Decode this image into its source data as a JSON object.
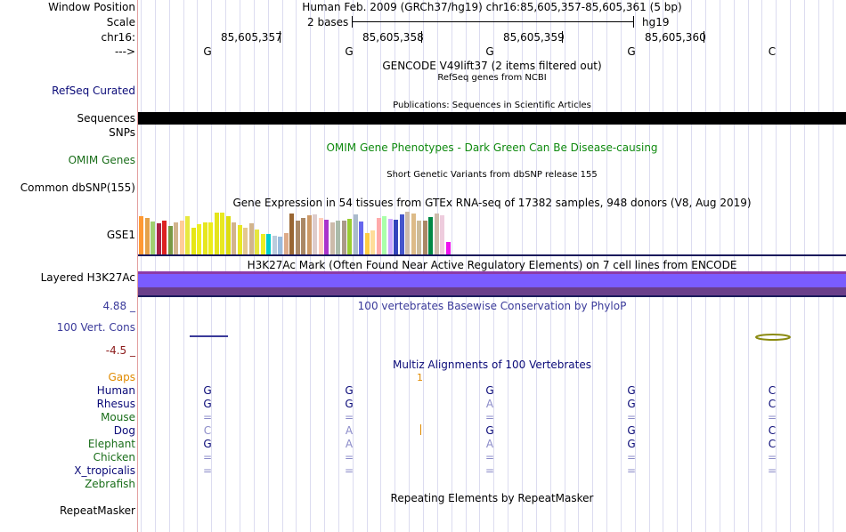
{
  "colors": {
    "navy": "#0a0a78",
    "green": "#1a6e1a",
    "omim_green": "#0f8a0f",
    "dark_red": "#8b1a1a",
    "gap_orange": "#e08a00",
    "phylop_blue": "#3a3a9a",
    "h3k27ac_purple": "#7a5cff",
    "h3k27ac_dark": "#6a3f8a",
    "grid_line": "#dcdcf0",
    "sequence_black": "#000000",
    "track_rule": "#1a1a5c"
  },
  "labels": {
    "window_position": "Window Position",
    "scale": "Scale",
    "chrom": "chr16:",
    "strand": "--->",
    "refseq": "RefSeq Curated",
    "sequences": "Sequences",
    "snps": "SNPs",
    "omim": "OMIM Genes",
    "dbsnp": "Common dbSNP(155)",
    "gse1": "GSE1",
    "h3k27ac": "Layered H3K27Ac",
    "phylop_top": "4.88 _",
    "phylop": "100 Vert. Cons",
    "phylop_bottom": "-4.5 _",
    "gaps": "Gaps",
    "species": [
      {
        "name": "Human",
        "color": "#0a0a78"
      },
      {
        "name": "Rhesus",
        "color": "#0a0a78"
      },
      {
        "name": "Mouse",
        "color": "#1a6e1a"
      },
      {
        "name": "Dog",
        "color": "#0a0a78"
      },
      {
        "name": "Elephant",
        "color": "#1a6e1a"
      },
      {
        "name": "Chicken",
        "color": "#1a6e1a"
      },
      {
        "name": "X_tropicalis",
        "color": "#0a0a78"
      },
      {
        "name": "Zebrafish",
        "color": "#1a6e1a"
      }
    ],
    "repeatmasker": "RepeatMasker"
  },
  "header": {
    "window": "Human Feb. 2009 (GRCh37/hg19)     chr16:85,605,357-85,605,361 (5 bp)",
    "scale_bases": "2 bases",
    "assembly": "hg19",
    "positions": [
      "85,605,357",
      "85,605,358",
      "85,605,359",
      "85,605,360"
    ]
  },
  "sequence": [
    "G",
    "G",
    "G",
    "G",
    "C"
  ],
  "tracks": {
    "gencode": "GENCODE V49lift37 (2 items filtered out)",
    "refseq_desc": "RefSeq genes from NCBI",
    "publications": "Publications: Sequences in Scientific Articles",
    "omim_desc": "OMIM Gene Phenotypes - Dark Green Can Be Disease-causing",
    "dbsnp_desc": "Short Genetic Variants from dbSNP release 155",
    "gtex_desc": "Gene Expression in 54 tissues from GTEx RNA-seq of 17382 samples, 948 donors (V8, Aug 2019)",
    "h3k27ac_desc": "H3K27Ac Mark (Often Found Near Active Regulatory Elements) on 7 cell lines from ENCODE",
    "phylop_desc": "100 vertebrates Basewise Conservation by PhyloP",
    "multiz_desc": "Multiz Alignments of 100 Vertebrates",
    "gap_count": "1",
    "repeat_desc": "Repeating Elements by RepeatMasker"
  },
  "alignment": [
    [
      "G",
      "G",
      "G",
      "G",
      "C"
    ],
    [
      "G",
      "G",
      "A",
      "G",
      "C"
    ],
    [
      "=",
      "=",
      "=",
      "=",
      "="
    ],
    [
      "C",
      "A",
      "G",
      "G",
      "C"
    ],
    [
      "G",
      "A",
      "A",
      "G",
      "C"
    ],
    [
      "=",
      "=",
      "=",
      "=",
      "="
    ],
    [
      "=",
      "=",
      "=",
      "=",
      "="
    ],
    [
      "",
      "",
      "",
      "",
      ""
    ]
  ],
  "alignment_colors": [
    [
      "#0a0a78",
      "#0a0a78",
      "#0a0a78",
      "#0a0a78",
      "#0a0a78"
    ],
    [
      "#0a0a78",
      "#0a0a78",
      "#8a8ac8",
      "#0a0a78",
      "#0a0a78"
    ],
    [
      "#8a8ac8",
      "#8a8ac8",
      "#8a8ac8",
      "#8a8ac8",
      "#8a8ac8"
    ],
    [
      "#8a8ac8",
      "#8a8ac8",
      "#0a0a78",
      "#0a0a78",
      "#0a0a78"
    ],
    [
      "#0a0a78",
      "#8a8ac8",
      "#8a8ac8",
      "#0a0a78",
      "#0a0a78"
    ],
    [
      "#8a8ac8",
      "#8a8ac8",
      "#8a8ac8",
      "#8a8ac8",
      "#8a8ac8"
    ],
    [
      "#8a8ac8",
      "#8a8ac8",
      "#8a8ac8",
      "#8a8ac8",
      "#8a8ac8"
    ],
    [
      "#0a0a78",
      "#0a0a78",
      "#0a0a78",
      "#0a0a78",
      "#0a0a78"
    ]
  ],
  "gtex": {
    "values": [
      0.9,
      0.86,
      0.78,
      0.72,
      0.8,
      0.66,
      0.74,
      0.8,
      0.9,
      0.62,
      0.7,
      0.74,
      0.74,
      0.98,
      0.98,
      0.9,
      0.74,
      0.68,
      0.62,
      0.72,
      0.58,
      0.48,
      0.48,
      0.44,
      0.42,
      0.5,
      0.95,
      0.8,
      0.86,
      0.92,
      0.94,
      0.86,
      0.82,
      0.76,
      0.8,
      0.8,
      0.84,
      0.94,
      0.78,
      0.5,
      0.56,
      0.86,
      0.9,
      0.84,
      0.82,
      0.94,
      1.0,
      0.96,
      0.8,
      0.8,
      0.88,
      0.96,
      0.92,
      0.3
    ],
    "colors": [
      "#ff9933",
      "#e4a14a",
      "#a0d070",
      "#aa2244",
      "#dd2222",
      "#779944",
      "#d2b48c",
      "#ffcc99",
      "#e8e840",
      "#e6e614",
      "#eeee22",
      "#e6e620",
      "#eded18",
      "#e4e41c",
      "#e8e822",
      "#dddd10",
      "#d2b48c",
      "#e8e822",
      "#e4c890",
      "#d2b48c",
      "#e6e640",
      "#eeee22",
      "#00cccc",
      "#bbccdd",
      "#99bbdd",
      "#ddaa88",
      "#996633",
      "#aa8866",
      "#aa8866",
      "#cc9966",
      "#ddcccc",
      "#ffccbb",
      "#aa33cc",
      "#ccbbaa",
      "#aabbaa",
      "#aa9988",
      "#99cc33",
      "#aabbcc",
      "#6666ee",
      "#ffcc44",
      "#ffdd99",
      "#ffaaaa",
      "#aaffaa",
      "#ccaaff",
      "#3344bb",
      "#4455cc",
      "#ccbbaa",
      "#ddbb88",
      "#ccbb99",
      "#aa8866",
      "#008844",
      "#ccbbaa",
      "#eeccdd",
      "#ee11ee"
    ]
  }
}
